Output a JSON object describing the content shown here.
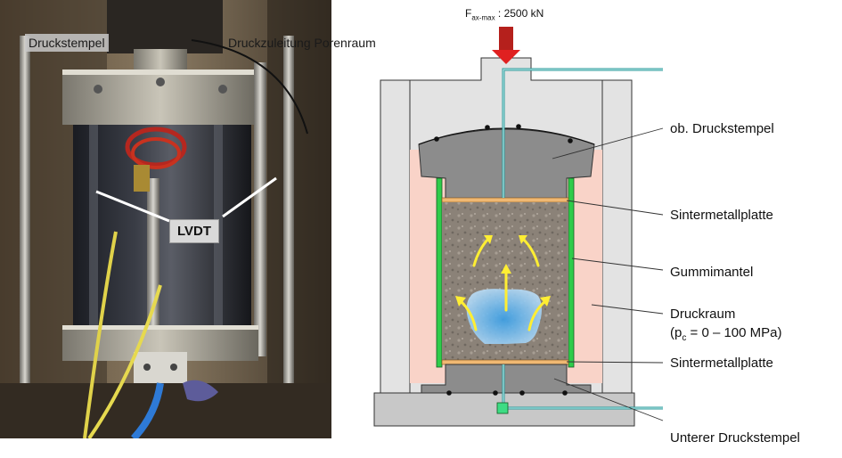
{
  "photo": {
    "labels": {
      "druckstempel": "Druckstempel",
      "druckzuleitung": "Druckzuleitung Porenraum",
      "lvdt": "LVDT"
    }
  },
  "diagram": {
    "force": {
      "symbol": "F",
      "subscript": "ax-max",
      "value": " : 2500 kN"
    },
    "callouts": {
      "upper_piston": "ob. Druckstempel",
      "sinter_top": "Sintermetallplatte",
      "rubber_jacket": "Gummimantel",
      "pressure_chamber": "Druckraum",
      "pressure_range_pre": "(p",
      "pressure_range_sub": "c",
      "pressure_range_post": " = 0 – 100 MPa)",
      "sinter_bottom": "Sintermetallplatte",
      "lower_piston": "Unterer Druckstempel"
    },
    "colors": {
      "steel_light": "#e3e3e3",
      "steel_dark": "#8c8c8c",
      "chamber_fluid": "#f9d3c8",
      "rubber": "#2ecc4a",
      "sinter": "#f0b872",
      "fluid_line": "#2a9a9a",
      "flow_arrow": "#ffee33",
      "force_arrow": "#d42020"
    }
  }
}
